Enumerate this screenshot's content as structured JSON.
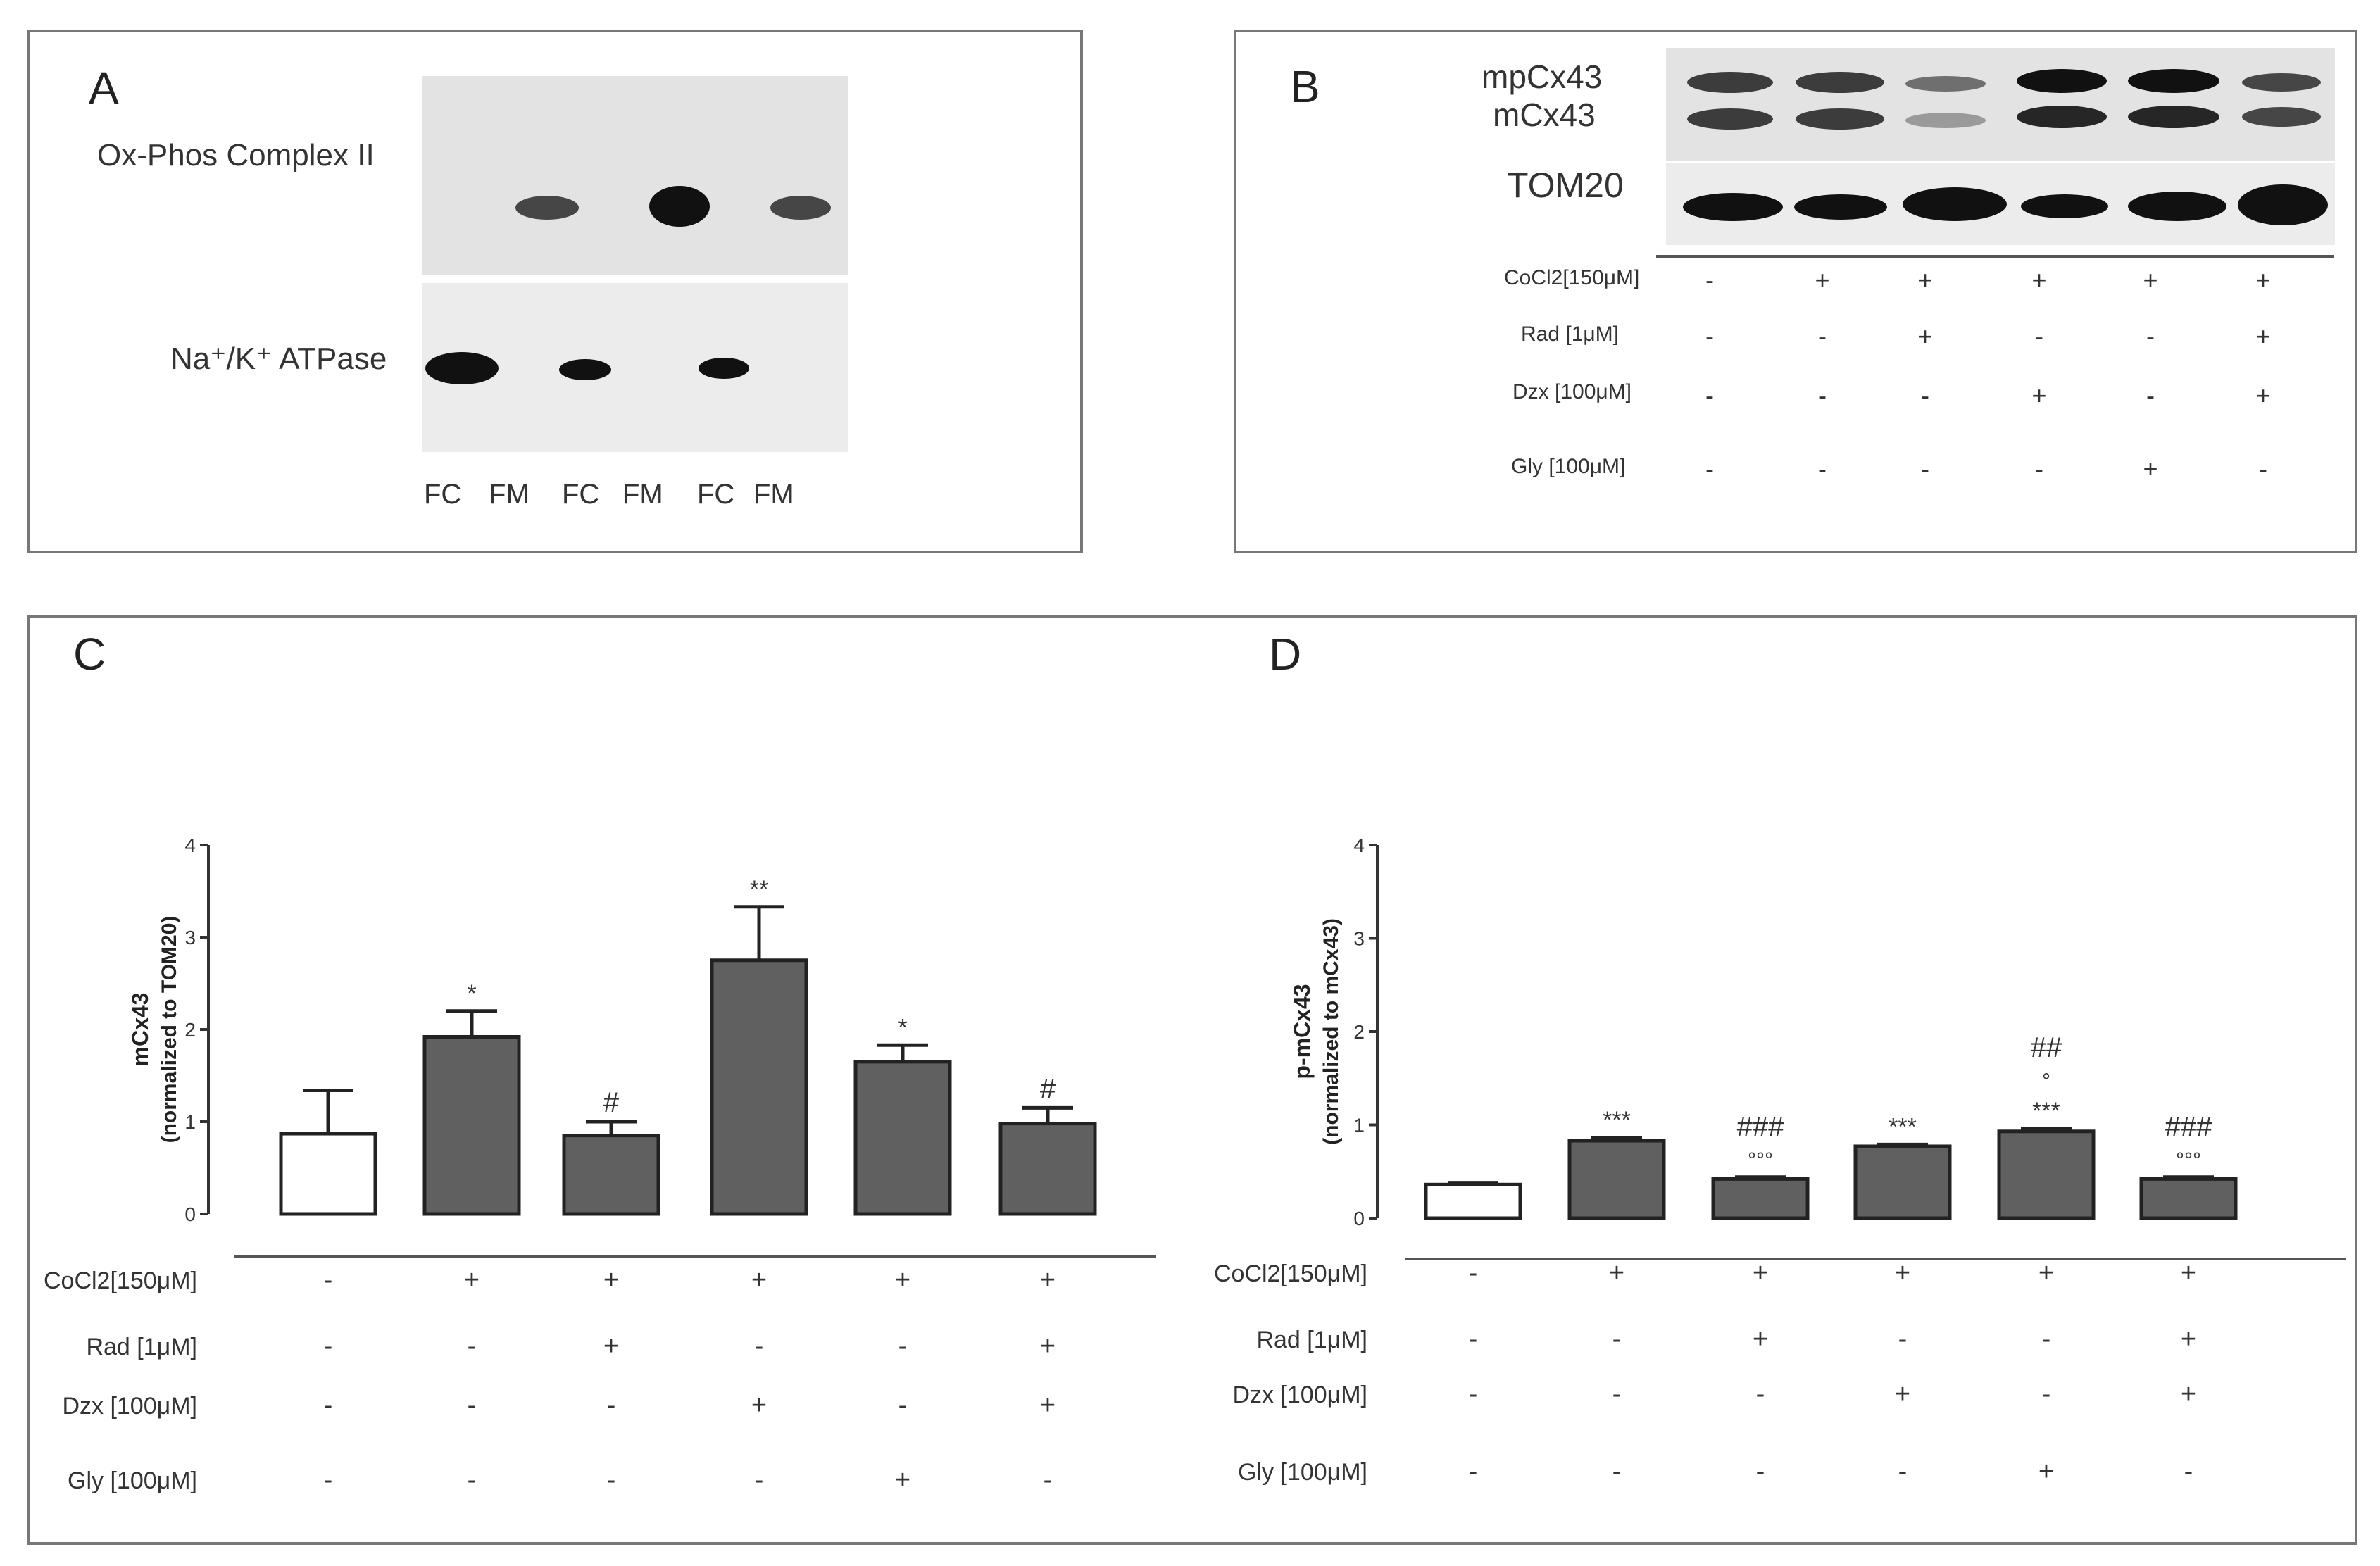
{
  "panels": {
    "A": {
      "label": "A",
      "row1_label": "Ox-Phos Complex II",
      "row2_label": "Na⁺/K⁺ ATPase",
      "lanes": [
        "FC",
        "FM",
        "FC",
        "FM",
        "FC",
        "FM"
      ]
    },
    "B": {
      "label": "B",
      "band_labels": [
        "mpCx43",
        "mCx43",
        "TOM20"
      ],
      "conditions": [
        {
          "label": "CoCl2[150μM]",
          "marks": [
            "-",
            "+",
            "+",
            "+",
            "+",
            "+"
          ]
        },
        {
          "label": "Rad [1μM]",
          "marks": [
            "-",
            "-",
            "+",
            "-",
            "-",
            "+"
          ]
        },
        {
          "label": "Dzx [100μM]",
          "marks": [
            "-",
            "-",
            "-",
            "+",
            "-",
            "+"
          ]
        },
        {
          "label": "Gly [100μM]",
          "marks": [
            "-",
            "-",
            "-",
            "-",
            "+",
            "-"
          ]
        }
      ]
    },
    "C": {
      "label": "C"
    },
    "D": {
      "label": "D"
    }
  },
  "chart_data": [
    {
      "type": "bar",
      "panel": "C",
      "ylabel": "mCx43",
      "ylabel2": "(normalized to TOM20)",
      "ylim": [
        0,
        4
      ],
      "yticks": [
        "0",
        "1",
        "2",
        "3",
        "4"
      ],
      "values": [
        0.87,
        1.92,
        0.85,
        2.75,
        1.65,
        0.98
      ],
      "errors": [
        0.47,
        0.28,
        0.15,
        0.58,
        0.18,
        0.17
      ],
      "annotations": [
        [],
        [
          "*"
        ],
        [
          "#"
        ],
        [
          "**"
        ],
        [
          "*"
        ],
        [
          "#"
        ]
      ],
      "conditions": [
        {
          "label": "CoCl2[150μM]",
          "marks": [
            "-",
            "+",
            "+",
            "+",
            "+",
            "+"
          ]
        },
        {
          "label": "Rad [1μM]",
          "marks": [
            "-",
            "-",
            "+",
            "-",
            "-",
            "+"
          ]
        },
        {
          "label": "Dzx [100μM]",
          "marks": [
            "-",
            "-",
            "-",
            "+",
            "-",
            "+"
          ]
        },
        {
          "label": "Gly [100μM]",
          "marks": [
            "-",
            "-",
            "-",
            "-",
            "+",
            "-"
          ]
        }
      ],
      "colors": [
        "#ffffff",
        "#606060"
      ]
    },
    {
      "type": "bar",
      "panel": "D",
      "ylabel": "p-mCx43",
      "ylabel2": "(normalized to mCx43)",
      "ylim": [
        0,
        4
      ],
      "yticks": [
        "0",
        "1",
        "2",
        "3",
        "4"
      ],
      "values": [
        0.36,
        0.83,
        0.42,
        0.77,
        0.93,
        0.42
      ],
      "errors": [
        0.02,
        0.03,
        0.02,
        0.02,
        0.03,
        0.02
      ],
      "annotations": [
        [],
        [
          "***"
        ],
        [
          "°°°",
          "###"
        ],
        [
          "***"
        ],
        [
          "***",
          "°",
          "##"
        ],
        [
          "°°°",
          "###"
        ]
      ],
      "conditions": [
        {
          "label": "CoCl2[150μM]",
          "marks": [
            "-",
            "+",
            "+",
            "+",
            "+",
            "+"
          ]
        },
        {
          "label": "Rad [1μM]",
          "marks": [
            "-",
            "-",
            "+",
            "-",
            "-",
            "+"
          ]
        },
        {
          "label": "Dzx [100μM]",
          "marks": [
            "-",
            "-",
            "-",
            "+",
            "-",
            "+"
          ]
        },
        {
          "label": "Gly [100μM]",
          "marks": [
            "-",
            "-",
            "-",
            "-",
            "+",
            "-"
          ]
        }
      ],
      "colors": [
        "#ffffff",
        "#606060"
      ]
    }
  ]
}
